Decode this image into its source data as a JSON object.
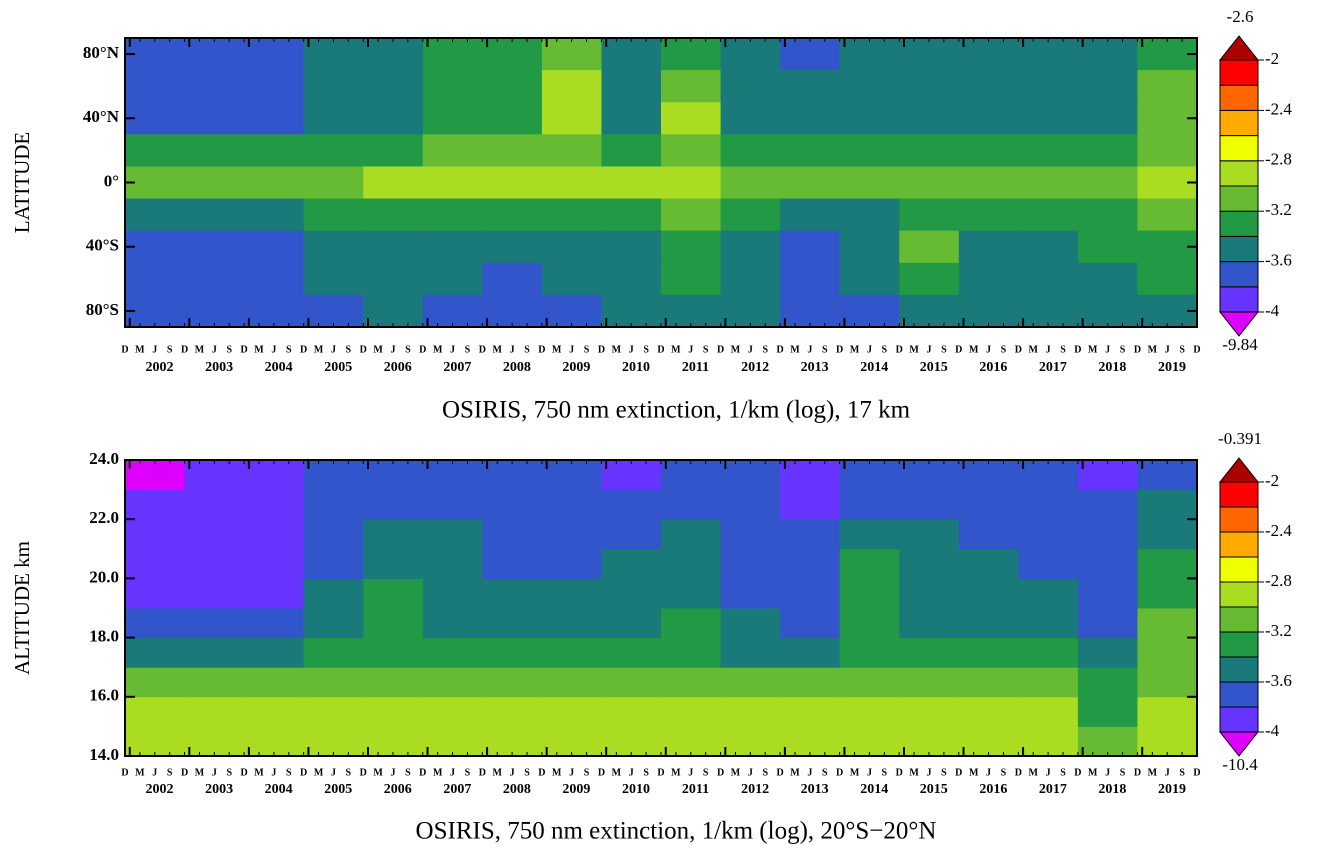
{
  "chart_data": [
    {
      "type": "heatmap",
      "title": "OSIRIS, 750 nm extinction, 1/km (log), 17 km",
      "y_label": "LATITUDE",
      "xlim": [
        2001.92,
        2019.92
      ],
      "xticks": [
        2002,
        2003,
        2004,
        2005,
        2006,
        2007,
        2008,
        2009,
        2010,
        2011,
        2012,
        2013,
        2014,
        2015,
        2016,
        2017,
        2018,
        2019
      ],
      "xminor_labels": [
        "D",
        "M",
        "J",
        "S"
      ],
      "x": [
        2002,
        2003,
        2004,
        2005,
        2006,
        2007,
        2008,
        2009,
        2010,
        2011,
        2012,
        2013,
        2014,
        2015,
        2016,
        2017,
        2018,
        2019
      ],
      "ylim": [
        -90,
        90
      ],
      "yticks": [
        {
          "value": 80,
          "label": "80°N"
        },
        {
          "value": 40,
          "label": "40°N"
        },
        {
          "value": 0,
          "label": "0°"
        },
        {
          "value": -40,
          "label": "40°S"
        },
        {
          "value": -80,
          "label": "80°S"
        }
      ],
      "y": [
        80,
        60,
        40,
        20,
        0,
        -20,
        -40,
        -60,
        -80
      ],
      "z": [
        [
          -3.7,
          -3.7,
          -3.7,
          -3.5,
          -3.5,
          -3.3,
          -3.3,
          -3.1,
          -3.5,
          -3.3,
          -3.5,
          -3.7,
          -3.5,
          -3.5,
          -3.5,
          -3.5,
          -3.5,
          -3.3
        ],
        [
          -3.7,
          -3.7,
          -3.7,
          -3.5,
          -3.5,
          -3.3,
          -3.3,
          -2.9,
          -3.5,
          -3.1,
          -3.5,
          -3.5,
          -3.5,
          -3.5,
          -3.5,
          -3.5,
          -3.5,
          -3.1
        ],
        [
          -3.7,
          -3.7,
          -3.7,
          -3.5,
          -3.5,
          -3.3,
          -3.3,
          -2.9,
          -3.5,
          -2.9,
          -3.5,
          -3.5,
          -3.5,
          -3.5,
          -3.5,
          -3.5,
          -3.5,
          -3.1
        ],
        [
          -3.3,
          -3.3,
          -3.3,
          -3.3,
          -3.3,
          -3.1,
          -3.1,
          -3.1,
          -3.3,
          -3.1,
          -3.3,
          -3.3,
          -3.3,
          -3.3,
          -3.3,
          -3.3,
          -3.3,
          -3.1
        ],
        [
          -3.1,
          -3.1,
          -3.1,
          -3.1,
          -2.9,
          -2.9,
          -2.9,
          -2.9,
          -2.9,
          -2.9,
          -3.1,
          -3.1,
          -3.1,
          -3.1,
          -3.1,
          -3.1,
          -3.1,
          -2.9
        ],
        [
          -3.5,
          -3.5,
          -3.5,
          -3.3,
          -3.3,
          -3.3,
          -3.3,
          -3.3,
          -3.3,
          -3.1,
          -3.3,
          -3.5,
          -3.5,
          -3.3,
          -3.3,
          -3.3,
          -3.3,
          -3.1
        ],
        [
          -3.7,
          -3.7,
          -3.7,
          -3.5,
          -3.5,
          -3.5,
          -3.5,
          -3.5,
          -3.5,
          -3.3,
          -3.5,
          -3.7,
          -3.5,
          -3.1,
          -3.5,
          -3.5,
          -3.3,
          -3.3
        ],
        [
          -3.7,
          -3.7,
          -3.7,
          -3.5,
          -3.5,
          -3.5,
          -3.7,
          -3.5,
          -3.5,
          -3.3,
          -3.5,
          -3.7,
          -3.5,
          -3.3,
          -3.5,
          -3.5,
          -3.5,
          -3.3
        ],
        [
          -3.7,
          -3.7,
          -3.7,
          -3.7,
          -3.5,
          -3.7,
          -3.7,
          -3.7,
          -3.5,
          -3.5,
          -3.5,
          -3.7,
          -3.7,
          -3.5,
          -3.5,
          -3.5,
          -3.5,
          -3.5
        ]
      ],
      "levels": [
        -4,
        -3.8,
        -3.6,
        -3.4,
        -3.2,
        -3,
        -2.8,
        -2.6,
        -2.4,
        -2.2,
        -2
      ],
      "colors": [
        "#dd00ff",
        "#6633ff",
        "#3355cc",
        "#1a7a7a",
        "#229944",
        "#66bb33",
        "#aadd22",
        "#eeff00",
        "#ffaa00",
        "#ff6600",
        "#ff0000",
        "#aa0000"
      ],
      "colorbar_ticks": [
        -2,
        -2.4,
        -2.8,
        -3.2,
        -3.6,
        -4
      ],
      "colorbar_max": -2.6,
      "colorbar_min": -9.84
    },
    {
      "type": "heatmap",
      "title": "OSIRIS, 750 nm extinction, 1/km (log), 20°S−20°N",
      "y_label": "ALTITUDE  km",
      "xlim": [
        2001.92,
        2019.92
      ],
      "xticks": [
        2002,
        2003,
        2004,
        2005,
        2006,
        2007,
        2008,
        2009,
        2010,
        2011,
        2012,
        2013,
        2014,
        2015,
        2016,
        2017,
        2018,
        2019
      ],
      "xminor_labels": [
        "D",
        "M",
        "J",
        "S"
      ],
      "x": [
        2002,
        2003,
        2004,
        2005,
        2006,
        2007,
        2008,
        2009,
        2010,
        2011,
        2012,
        2013,
        2014,
        2015,
        2016,
        2017,
        2018,
        2019
      ],
      "ylim": [
        14,
        24
      ],
      "yticks": [
        {
          "value": 24,
          "label": "24.0"
        },
        {
          "value": 22,
          "label": "22.0"
        },
        {
          "value": 20,
          "label": "20.0"
        },
        {
          "value": 18,
          "label": "18.0"
        },
        {
          "value": 16,
          "label": "16.0"
        },
        {
          "value": 14,
          "label": "14.0"
        }
      ],
      "y": [
        14.5,
        15.5,
        16.5,
        17.5,
        18.5,
        19.5,
        20.5,
        21.5,
        22.5,
        23.5
      ],
      "z": [
        [
          -2.9,
          -2.9,
          -2.9,
          -2.9,
          -2.9,
          -2.9,
          -2.9,
          -2.9,
          -2.9,
          -2.9,
          -2.9,
          -2.9,
          -2.9,
          -2.9,
          -2.9,
          -2.9,
          -3.1,
          -2.9
        ],
        [
          -2.9,
          -2.9,
          -2.9,
          -2.9,
          -2.9,
          -2.9,
          -2.9,
          -2.9,
          -2.9,
          -2.9,
          -2.9,
          -2.9,
          -2.9,
          -2.9,
          -2.9,
          -2.9,
          -3.3,
          -2.9
        ],
        [
          -3.1,
          -3.1,
          -3.1,
          -3.1,
          -3.1,
          -3.1,
          -3.1,
          -3.1,
          -3.1,
          -3.1,
          -3.1,
          -3.1,
          -3.1,
          -3.1,
          -3.1,
          -3.1,
          -3.3,
          -3.1
        ],
        [
          -3.5,
          -3.5,
          -3.5,
          -3.3,
          -3.3,
          -3.3,
          -3.3,
          -3.3,
          -3.3,
          -3.3,
          -3.5,
          -3.5,
          -3.3,
          -3.3,
          -3.3,
          -3.3,
          -3.5,
          -3.1
        ],
        [
          -3.7,
          -3.7,
          -3.7,
          -3.5,
          -3.3,
          -3.5,
          -3.5,
          -3.5,
          -3.5,
          -3.3,
          -3.5,
          -3.7,
          -3.3,
          -3.5,
          -3.5,
          -3.5,
          -3.7,
          -3.1
        ],
        [
          -3.9,
          -3.9,
          -3.9,
          -3.5,
          -3.3,
          -3.5,
          -3.5,
          -3.5,
          -3.5,
          -3.5,
          -3.7,
          -3.7,
          -3.3,
          -3.5,
          -3.5,
          -3.5,
          -3.7,
          -3.3
        ],
        [
          -3.9,
          -3.9,
          -3.9,
          -3.7,
          -3.5,
          -3.5,
          -3.7,
          -3.7,
          -3.5,
          -3.5,
          -3.7,
          -3.7,
          -3.3,
          -3.5,
          -3.5,
          -3.7,
          -3.7,
          -3.3
        ],
        [
          -3.9,
          -3.9,
          -3.9,
          -3.7,
          -3.5,
          -3.5,
          -3.7,
          -3.7,
          -3.7,
          -3.5,
          -3.7,
          -3.7,
          -3.5,
          -3.5,
          -3.7,
          -3.7,
          -3.7,
          -3.5
        ],
        [
          -3.9,
          -3.9,
          -3.9,
          -3.7,
          -3.7,
          -3.7,
          -3.7,
          -3.7,
          -3.7,
          -3.7,
          -3.7,
          -3.9,
          -3.7,
          -3.7,
          -3.7,
          -3.7,
          -3.7,
          -3.5
        ],
        [
          -4.1,
          -3.9,
          -3.9,
          -3.7,
          -3.7,
          -3.7,
          -3.7,
          -3.7,
          -3.9,
          -3.7,
          -3.7,
          -3.9,
          -3.7,
          -3.7,
          -3.7,
          -3.7,
          -3.9,
          -3.7
        ]
      ],
      "levels": [
        -4,
        -3.8,
        -3.6,
        -3.4,
        -3.2,
        -3,
        -2.8,
        -2.6,
        -2.4,
        -2.2,
        -2
      ],
      "colors": [
        "#dd00ff",
        "#6633ff",
        "#3355cc",
        "#1a7a7a",
        "#229944",
        "#66bb33",
        "#aadd22",
        "#eeff00",
        "#ffaa00",
        "#ff6600",
        "#ff0000",
        "#aa0000"
      ],
      "colorbar_ticks": [
        -2,
        -2.4,
        -2.8,
        -3.2,
        -3.6,
        -4
      ],
      "colorbar_max": -0.391,
      "colorbar_min": -10.4
    }
  ]
}
